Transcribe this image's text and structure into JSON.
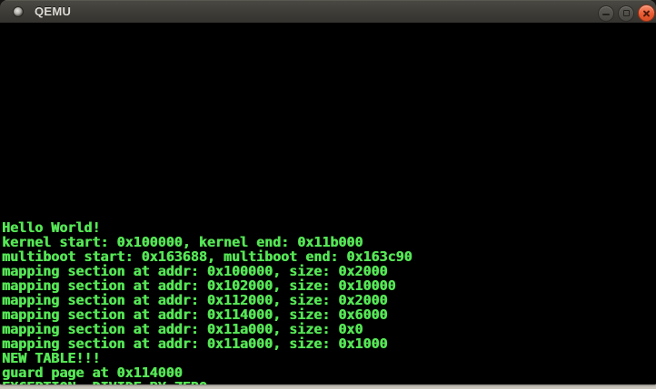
{
  "window": {
    "title": "QEMU",
    "controls": {
      "minimize": "minimize",
      "maximize": "maximize",
      "close": "close"
    }
  },
  "colors": {
    "console_green": "#55e655",
    "terminal_bg": "#000000",
    "titlebar_bg": "#3d3c37",
    "close_button_orange": "#ea5c33",
    "desktop_strip": "#c9c5bc"
  },
  "console": {
    "lines": [
      "Hello World!",
      "kernel start: 0x100000, kernel end: 0x11b000",
      "multiboot start: 0x163688, multiboot end: 0x163c90",
      "mapping section at addr: 0x100000, size: 0x2000",
      "mapping section at addr: 0x102000, size: 0x10000",
      "mapping section at addr: 0x112000, size: 0x2000",
      "mapping section at addr: 0x114000, size: 0x6000",
      "mapping section at addr: 0x11a000, size: 0x0",
      "mapping section at addr: 0x11a000, size: 0x1000",
      "NEW TABLE!!!",
      "guard page at 0x114000",
      "EXCEPTION: DIVIDE BY ZERO"
    ]
  }
}
